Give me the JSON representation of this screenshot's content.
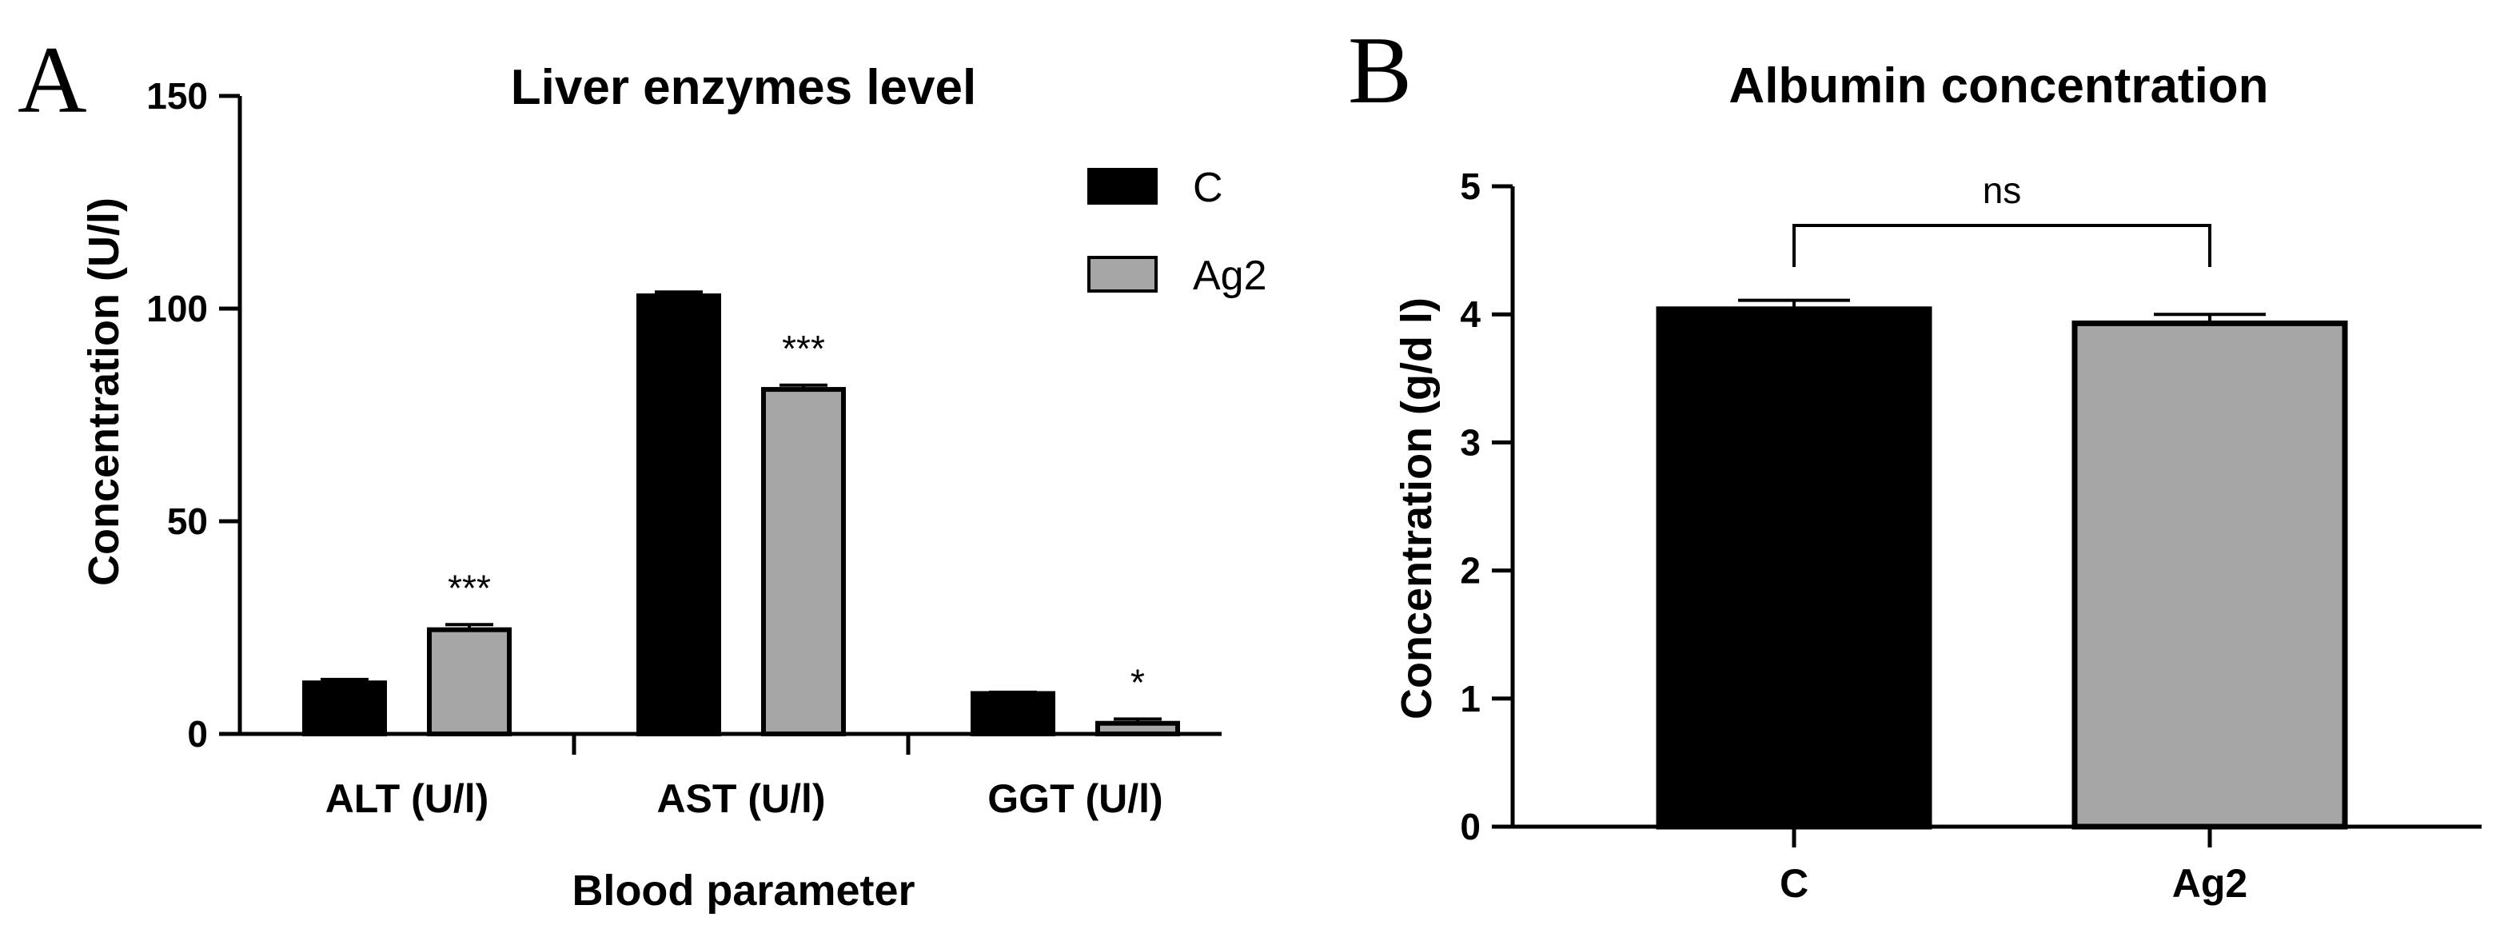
{
  "panels": {
    "a": {
      "letter": "A"
    },
    "b": {
      "letter": "B"
    }
  },
  "colors": {
    "control": "#000000",
    "treatment": "#a6a6a6",
    "axis": "#000000"
  },
  "chart_data": [
    {
      "type": "bar",
      "title": "Liver enzymes level",
      "xlabel": "Blood parameter",
      "ylabel": "Concentration (U/l)",
      "ylim": [
        0,
        150
      ],
      "yticks": [
        "0",
        "50",
        "100",
        "150"
      ],
      "categories": [
        "ALT (U/l)",
        "AST (U/l)",
        "GGT (U/l)"
      ],
      "series": [
        {
          "name": "C",
          "values": [
            12,
            103,
            9.5
          ],
          "errors": [
            0.8,
            0.9,
            0.3
          ]
        },
        {
          "name": "Ag2",
          "values": [
            24.5,
            81,
            2.5
          ],
          "errors": [
            1.2,
            1.0,
            1.0
          ]
        }
      ],
      "significance": [
        "***",
        "***",
        "*"
      ],
      "legend_position": "top-right",
      "grid": false
    },
    {
      "type": "bar",
      "title": "Albumin concentration",
      "xlabel": "",
      "ylabel": "Concentration (g/d l)",
      "ylim": [
        0,
        5
      ],
      "yticks": [
        "0",
        "1",
        "2",
        "3",
        "4",
        "5"
      ],
      "categories": [
        "C",
        "Ag2"
      ],
      "values": [
        4.04,
        3.93
      ],
      "errors": [
        0.07,
        0.07
      ],
      "comparison": "ns",
      "grid": false
    }
  ]
}
